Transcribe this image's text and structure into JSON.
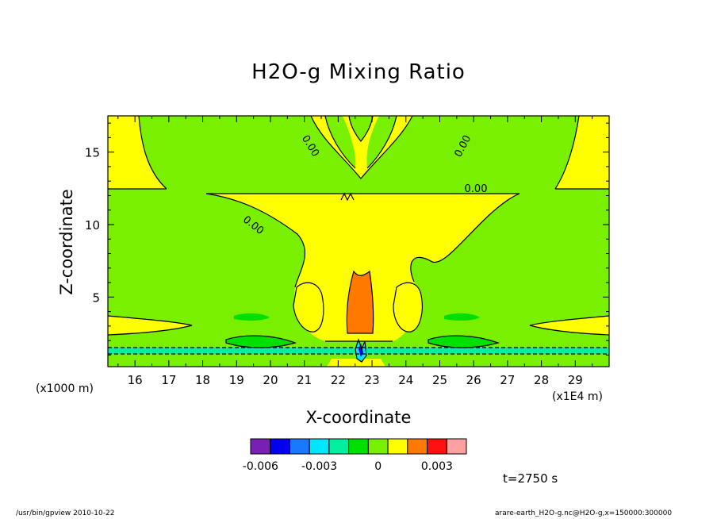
{
  "chart_data": {
    "type": "contour",
    "title": "H2O-g Mixing Ratio",
    "xlabel": "X-coordinate",
    "ylabel": "Z-coordinate",
    "x_multiplier_label": "(x1E4 m)",
    "y_multiplier_label": "(x1000 m)",
    "xlim": [
      15.2,
      30.0
    ],
    "ylim": [
      0.2,
      17.5
    ],
    "x_ticks": [
      16,
      17,
      18,
      19,
      20,
      21,
      22,
      23,
      24,
      25,
      26,
      27,
      28,
      29
    ],
    "y_ticks": [
      5,
      10,
      15
    ],
    "contour_labels": [
      "0.00",
      "0.00",
      "0.00",
      "0.00"
    ],
    "time_label": "t=2750 s",
    "colorbar": {
      "ticks": [
        "-0.006",
        "-0.003",
        "0",
        "0.003"
      ],
      "tick_values": [
        -0.006,
        -0.003,
        0,
        0.003
      ],
      "levels": [
        -0.0065,
        -0.0055,
        -0.0045,
        -0.0035,
        -0.0025,
        -0.0015,
        -0.0005,
        0.0005,
        0.0015,
        0.0025,
        0.0035
      ],
      "colors": [
        "#7a1fb4",
        "#0000ee",
        "#1a78ff",
        "#00e6ff",
        "#00f0a0",
        "#00e000",
        "#78f000",
        "#ffff00",
        "#ff7800",
        "#ff1010",
        "#ffa0a0"
      ]
    }
  },
  "footer": {
    "left": "/usr/bin/gpview  2010-10-22",
    "right": "arare-earth_H2O-g.nc@H2O-g,x=150000:300000"
  }
}
